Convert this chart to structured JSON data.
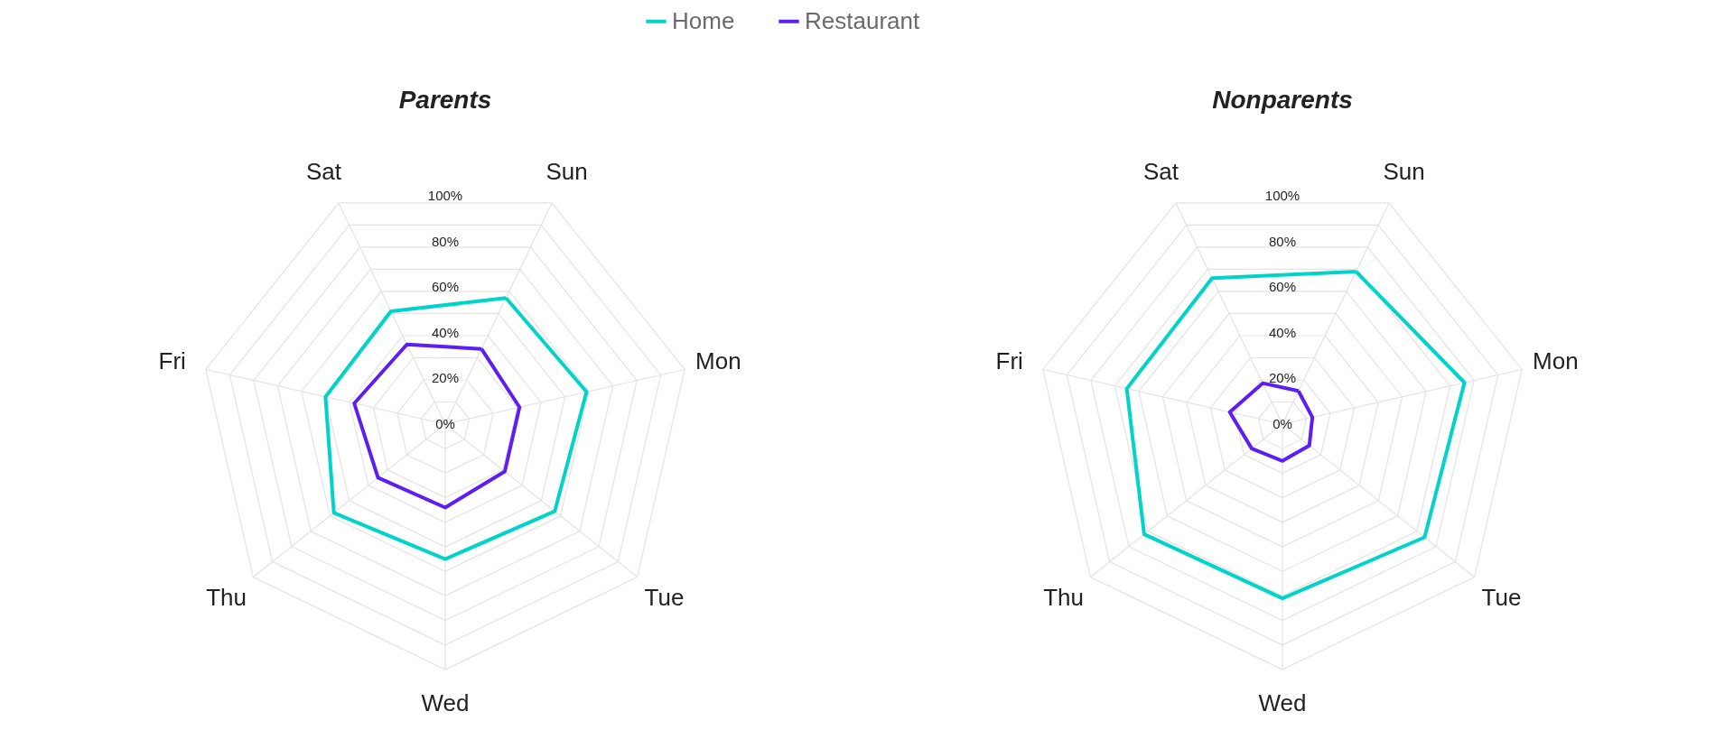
{
  "chart_data": [
    {
      "type": "radar",
      "title": "Parents",
      "categories": [
        "Sun",
        "Mon",
        "Tue",
        "Wed",
        "Thu",
        "Fri",
        "Sat"
      ],
      "ylim": [
        0,
        100
      ],
      "yticks": [
        {
          "value": 0,
          "label": "0%"
        },
        {
          "value": 20,
          "label": "20%"
        },
        {
          "value": 40,
          "label": "40%"
        },
        {
          "value": 60,
          "label": "60%"
        },
        {
          "value": 80,
          "label": "80%"
        },
        {
          "value": 100,
          "label": "100%"
        }
      ],
      "grid": true,
      "legend": "top",
      "series": [
        {
          "name": "Home",
          "color": "#00d4c8",
          "values": [
            57,
            59,
            57,
            55,
            58,
            50,
            51
          ]
        },
        {
          "name": "Restaurant",
          "color": "#5b1ff5",
          "values": [
            34,
            31,
            31,
            34,
            35,
            38,
            36
          ]
        }
      ]
    },
    {
      "type": "radar",
      "title": "Nonparents",
      "categories": [
        "Sun",
        "Mon",
        "Tue",
        "Wed",
        "Thu",
        "Fri",
        "Sat"
      ],
      "ylim": [
        0,
        100
      ],
      "yticks": [
        {
          "value": 0,
          "label": "0%"
        },
        {
          "value": 20,
          "label": "20%"
        },
        {
          "value": 40,
          "label": "40%"
        },
        {
          "value": 60,
          "label": "60%"
        },
        {
          "value": 80,
          "label": "80%"
        },
        {
          "value": 100,
          "label": "100%"
        }
      ],
      "grid": true,
      "legend": "top",
      "series": [
        {
          "name": "Home",
          "color": "#00d4c8",
          "values": [
            69,
            76,
            74,
            71,
            72,
            65,
            66
          ]
        },
        {
          "name": "Restaurant",
          "color": "#5b1ff5",
          "values": [
            15,
            12.5,
            14,
            15,
            16,
            22,
            18.5
          ]
        }
      ]
    }
  ]
}
